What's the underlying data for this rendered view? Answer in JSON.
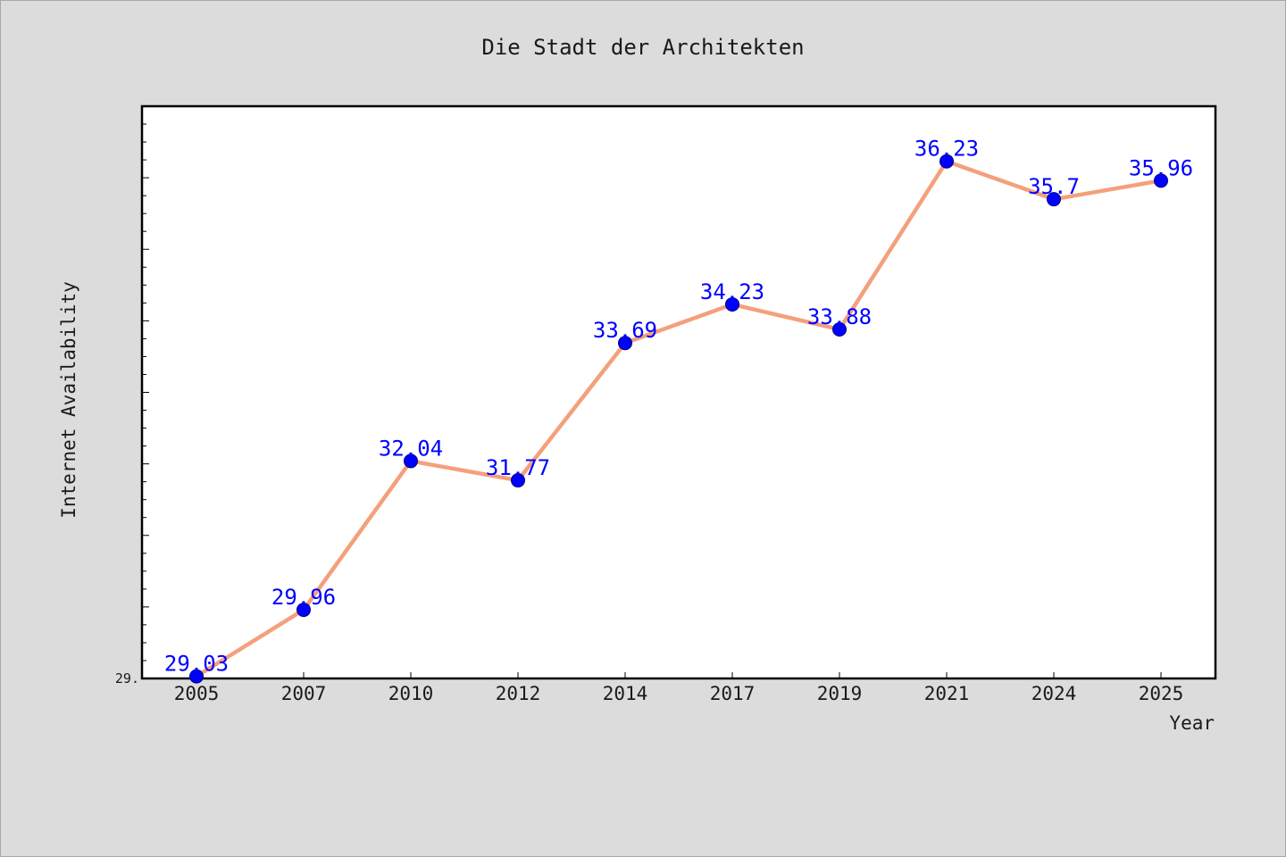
{
  "chart_data": {
    "type": "line",
    "title": "Die Stadt der Architekten",
    "xlabel": "Year",
    "ylabel": "Internet Availability",
    "categories": [
      "2005",
      "2007",
      "2010",
      "2012",
      "2014",
      "2017",
      "2019",
      "2021",
      "2024",
      "2025"
    ],
    "series": [
      {
        "values": [
          29.03,
          29.96,
          32.04,
          31.77,
          33.69,
          34.23,
          33.88,
          36.23,
          35.7,
          35.96
        ],
        "line_color": "#f4a07c",
        "marker_color": "#0000ff"
      }
    ],
    "data_labels": [
      "29.03",
      "29.96",
      "32.04",
      "31.77",
      "33.69",
      "34.23",
      "33.88",
      "36.23",
      "35.7",
      "35.96"
    ],
    "ytick_labels": [
      "29."
    ],
    "ylim": [
      29.0,
      37.0
    ],
    "grid": false,
    "legend": false
  }
}
